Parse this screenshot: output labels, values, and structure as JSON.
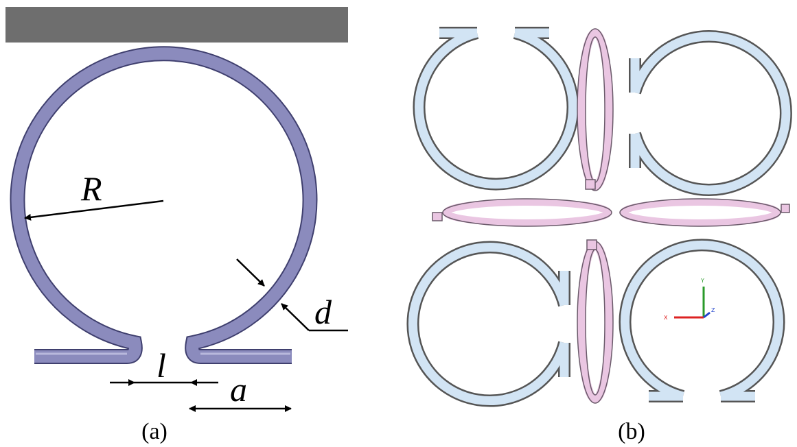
{
  "panel_a": {
    "caption": "(a)",
    "labels": {
      "radius": "R",
      "width": "d",
      "gap": "l",
      "leg": "a"
    }
  },
  "panel_b": {
    "caption": "(b)",
    "axis_labels": {
      "x": "X",
      "y": "Y",
      "z": "Z"
    }
  }
}
